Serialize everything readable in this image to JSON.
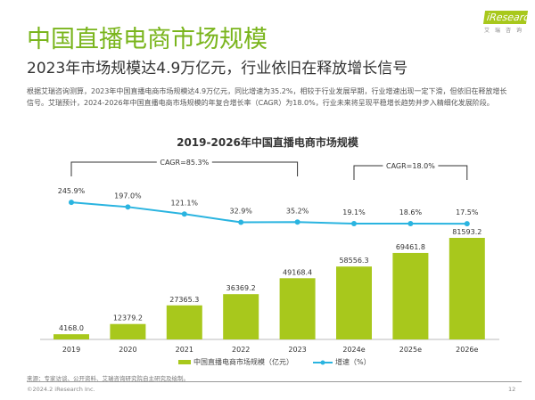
{
  "header": {
    "title": "中国直播电商市场规模",
    "subtitle": "2023年市场规模达4.9万亿元，行业依旧在释放增长信号",
    "body": "根据艾瑞咨询测算，2023年中国直播电商市场规模达4.9万亿元，同比增速为35.2%，相较于行业发展早期，行业增速出现一定下滑，但依旧在释放增长信号。艾瑞预计，2024-2026年中国直播电商市场规模的年复合增长率（CAGR）为18.0%，行业未来将呈现平稳增长趋势并步入精细化发展阶段。"
  },
  "logo": {
    "text": "iResearch",
    "sub": "艾瑞咨询"
  },
  "chart_data": {
    "type": "bar+line",
    "title": "2019-2026年中国直播电商市场规模",
    "categories": [
      "2019",
      "2020",
      "2021",
      "2022",
      "2023",
      "2024e",
      "2025e",
      "2026e"
    ],
    "series": [
      {
        "name": "中国直播电商市场规模（亿元）",
        "type": "bar",
        "color": "#a8c81c",
        "values": [
          4168.0,
          12379.2,
          27365.3,
          36369.2,
          49168.4,
          58556.3,
          69461.8,
          81593.2
        ],
        "labels": [
          "4168.0",
          "12379.2",
          "27365.3",
          "36369.2",
          "49168.4",
          "58556.3",
          "69461.8",
          "81593.2"
        ]
      },
      {
        "name": "增速（%）",
        "type": "line",
        "color": "#2ab4e0",
        "values": [
          245.9,
          197.0,
          121.1,
          32.9,
          35.2,
          19.1,
          18.6,
          17.5
        ],
        "labels": [
          "245.9%",
          "197.0%",
          "121.1%",
          "32.9%",
          "35.2%",
          "19.1%",
          "18.6%",
          "17.5%"
        ]
      }
    ],
    "annotations": [
      {
        "text": "CAGR=85.3%",
        "from": "2019",
        "to": "2023"
      },
      {
        "text": "CAGR=18.0%",
        "from": "2024e",
        "to": "2026e"
      }
    ]
  },
  "footer": {
    "source": "来源：专家访谈、公开资料、艾瑞咨询研究院自主研究及绘制。",
    "copyright": "©2024.2 iResearch Inc.",
    "page": "12"
  }
}
